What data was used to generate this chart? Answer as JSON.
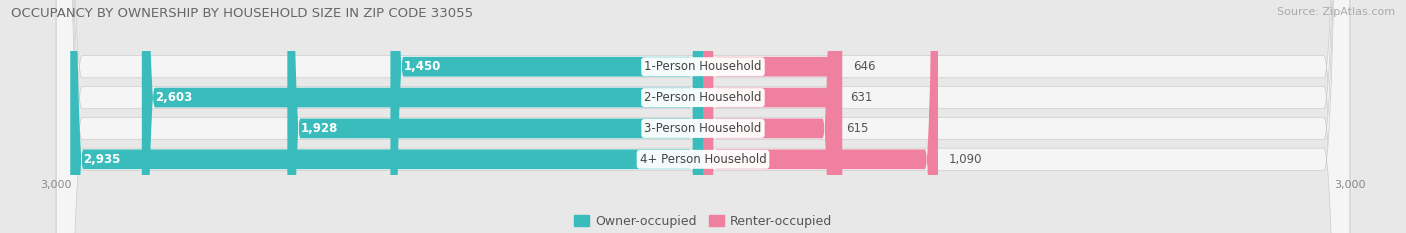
{
  "title": "OCCUPANCY BY OWNERSHIP BY HOUSEHOLD SIZE IN ZIP CODE 33055",
  "source": "Source: ZipAtlas.com",
  "categories": [
    "1-Person Household",
    "2-Person Household",
    "3-Person Household",
    "4+ Person Household"
  ],
  "owner_values": [
    1450,
    2603,
    1928,
    2935
  ],
  "renter_values": [
    646,
    631,
    615,
    1090
  ],
  "max_val": 3000,
  "owner_color": "#3BBCBC",
  "renter_color": "#F080A0",
  "bg_color": "#e8e8e8",
  "row_bg_color": "#f5f5f5",
  "title_fontsize": 9.5,
  "source_fontsize": 8,
  "label_fontsize": 8.5,
  "tick_fontsize": 8,
  "legend_fontsize": 9,
  "value_color_inside": "#ffffff",
  "value_color_outside": "#555555"
}
